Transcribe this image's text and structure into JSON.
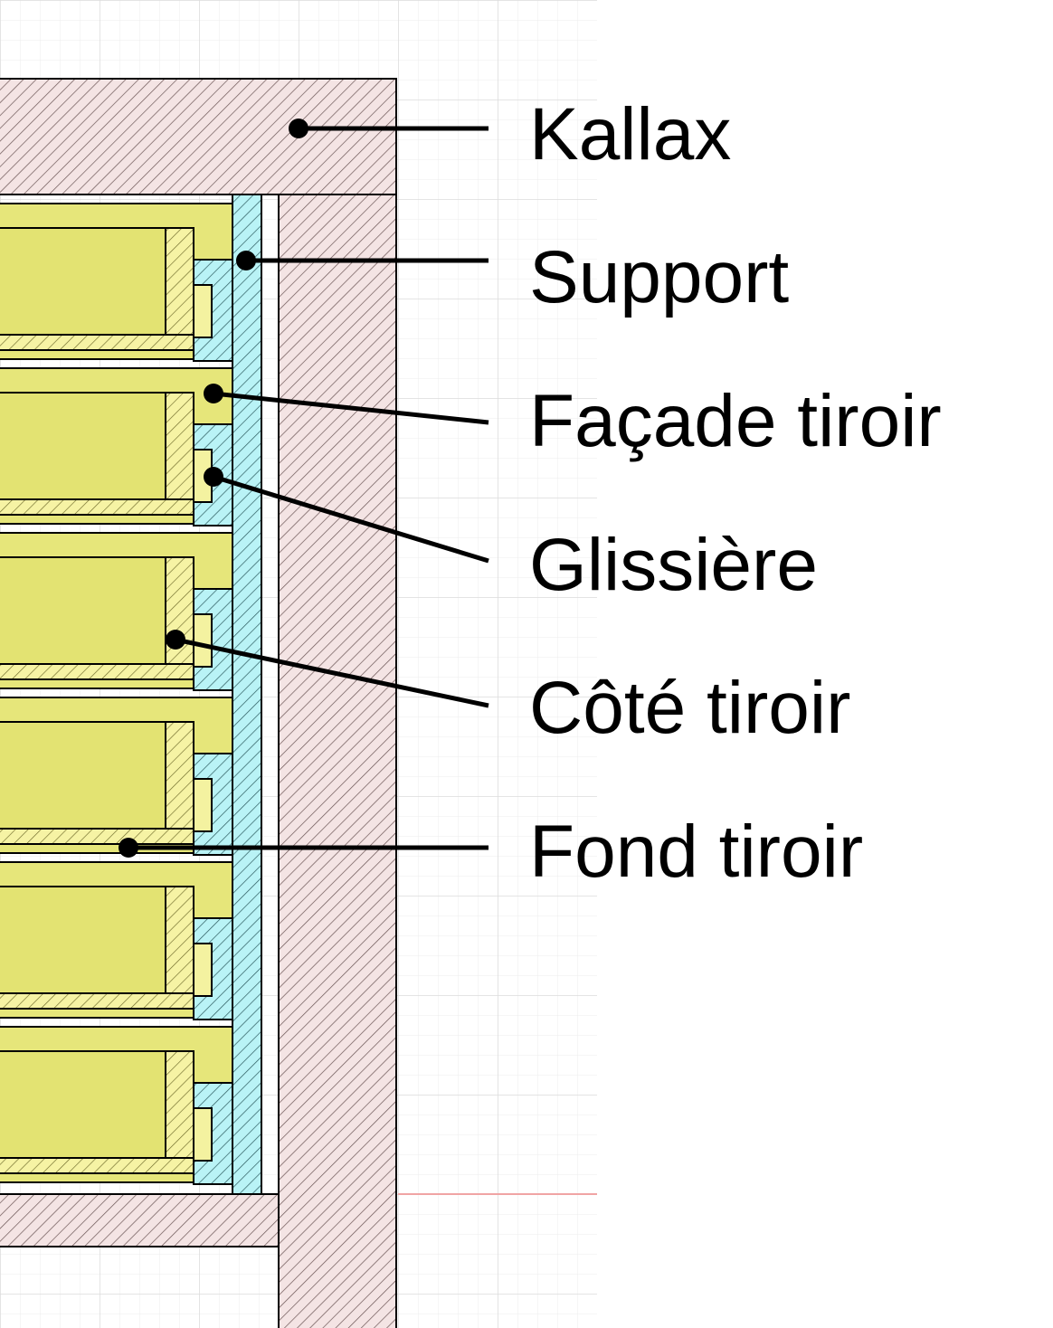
{
  "diagram": {
    "labels": [
      {
        "id": "kallax",
        "text": "Kallax"
      },
      {
        "id": "support",
        "text": "Support"
      },
      {
        "id": "facade",
        "text": "Façade tiroir"
      },
      {
        "id": "glissiere",
        "text": "Glissière"
      },
      {
        "id": "cote",
        "text": "Côté tiroir"
      },
      {
        "id": "fond",
        "text": "Fond tiroir"
      }
    ],
    "drawer_count": 6,
    "colors": {
      "kallax_fill": "#f3e3e3",
      "drawer_fill": "#e6e67a",
      "drawer_side_fill": "#f4f2a0",
      "support_fill": "#b8f4f6",
      "grid": "#e6e6e6",
      "hatch": "#5a4a4a",
      "red_guide": "#f2a0a0"
    }
  }
}
